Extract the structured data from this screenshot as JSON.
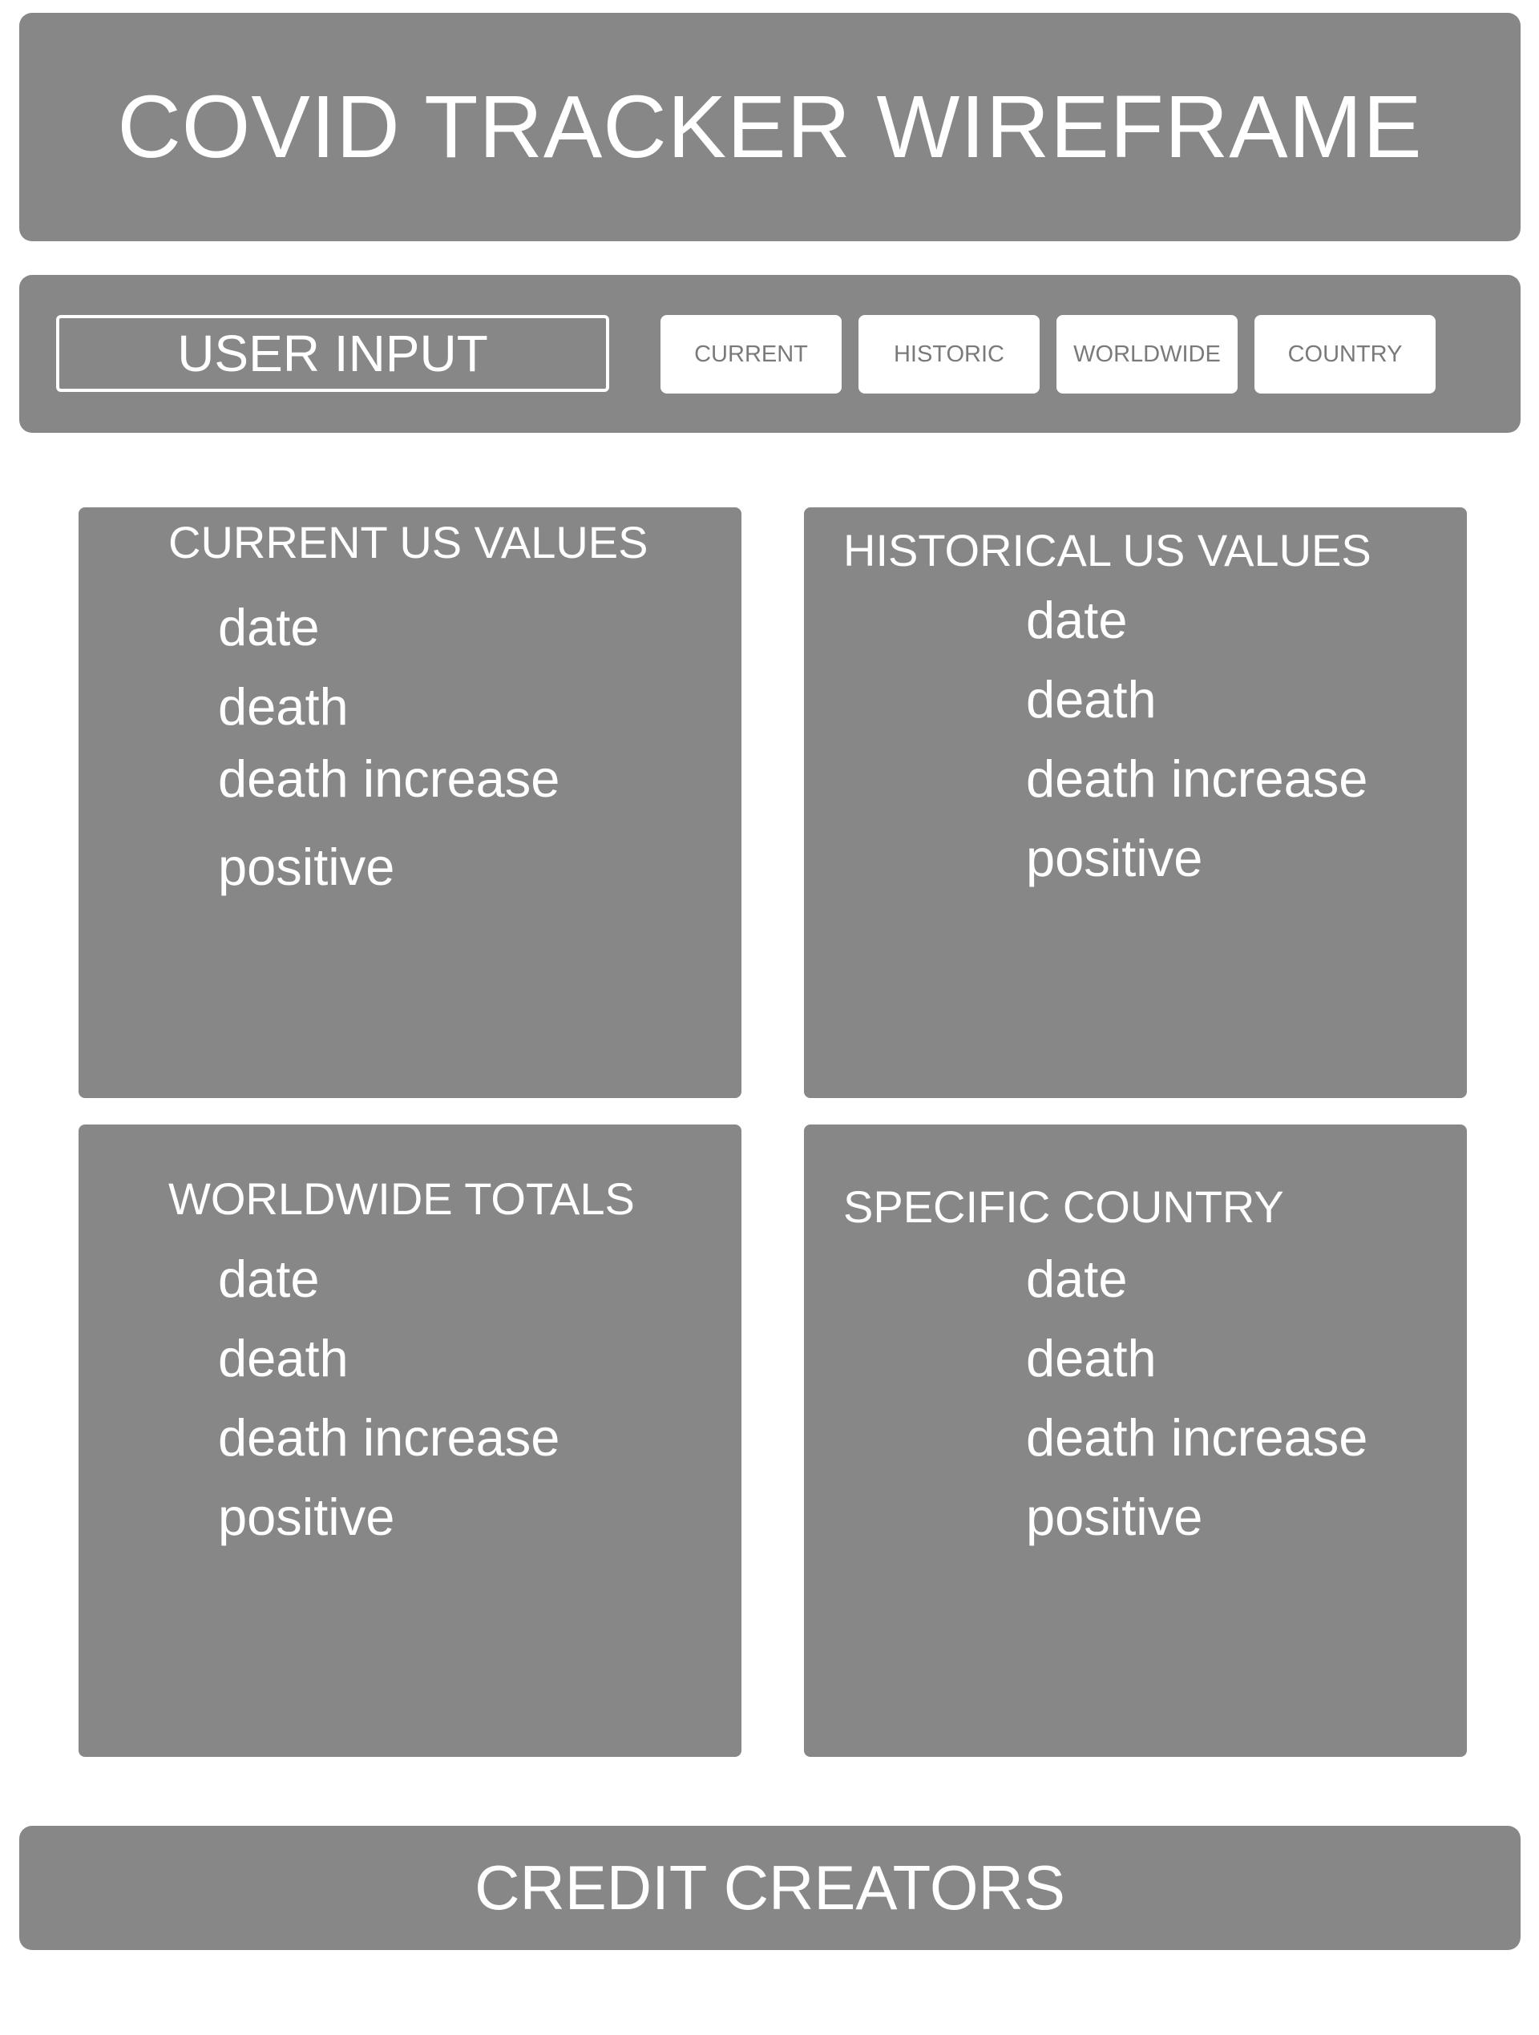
{
  "header": {
    "title": "COVID TRACKER WIREFRAME"
  },
  "toolbar": {
    "user_input": "USER INPUT",
    "buttons": [
      "CURRENT",
      "HISTORIC",
      "WORLDWIDE",
      "COUNTRY"
    ]
  },
  "cards": [
    {
      "title": "CURRENT US VALUES",
      "items": [
        "date",
        "death",
        "death increase",
        "positive"
      ]
    },
    {
      "title": "HISTORICAL US VALUES",
      "items": [
        "date",
        "death",
        "death increase",
        "positive"
      ]
    },
    {
      "title": "WORLDWIDE TOTALS",
      "items": [
        "date",
        "death",
        "death increase",
        "positive"
      ]
    },
    {
      "title": "SPECIFIC COUNTRY",
      "items": [
        "date",
        "death",
        "death increase",
        "positive"
      ]
    }
  ],
  "footer": {
    "text": "CREDIT CREATORS"
  },
  "colors": {
    "panel": "#878787",
    "text": "#ffffff",
    "button_bg": "#ffffff",
    "button_text": "#7a7a7a"
  }
}
